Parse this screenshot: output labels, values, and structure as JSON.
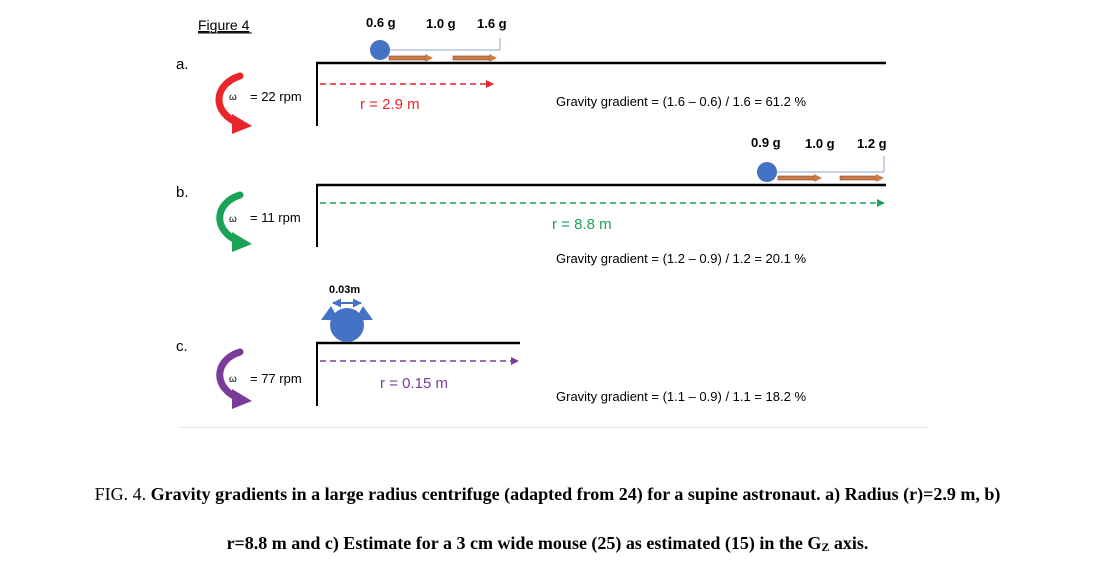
{
  "figure_label": "Figure 4",
  "colors": {
    "red": "#e8262b",
    "green": "#1aa257",
    "purple": "#7b3b98",
    "blue": "#4472c4",
    "brown": "#c97b4a",
    "text": "#000000"
  },
  "panels": [
    {
      "letter": "a.",
      "omega_symbol": "ω",
      "omega_text": "= 22 rpm",
      "radius_text": "r = 2.9 m",
      "gradient_text": "Gravity gradient = (1.6 – 0.6) / 1.6 = 61.2 %",
      "g_labels": [
        "0.6 g",
        "1.0 g",
        "1.6 g"
      ]
    },
    {
      "letter": "b.",
      "omega_symbol": "ω",
      "omega_text": "= 11 rpm",
      "radius_text": "r = 8.8 m",
      "gradient_text": "Gravity gradient = (1.2 – 0.9) / 1.2 = 20.1 %",
      "g_labels": [
        "0.9 g",
        "1.0 g",
        "1.2 g"
      ]
    },
    {
      "letter": "c.",
      "omega_symbol": "ω",
      "omega_text": "= 77 rpm",
      "radius_text": "r = 0.15 m",
      "gradient_text": "Gravity gradient = (1.1 – 0.9) / 1.1 = 18.2 %",
      "width_label": "0.03m"
    }
  ],
  "caption": {
    "prefix": "FIG. 4.",
    "line1_bold": "Gravity gradients in a large radius centrifuge (adapted from 24) for a supine astronaut. a) Radius (r)=2.9 m, b)",
    "line2_bold": "r=8.8 m and c) Estimate for a 3 cm wide mouse (25) as estimated (15) in the G",
    "line2_sub": "Z",
    "line2_end": " axis."
  }
}
